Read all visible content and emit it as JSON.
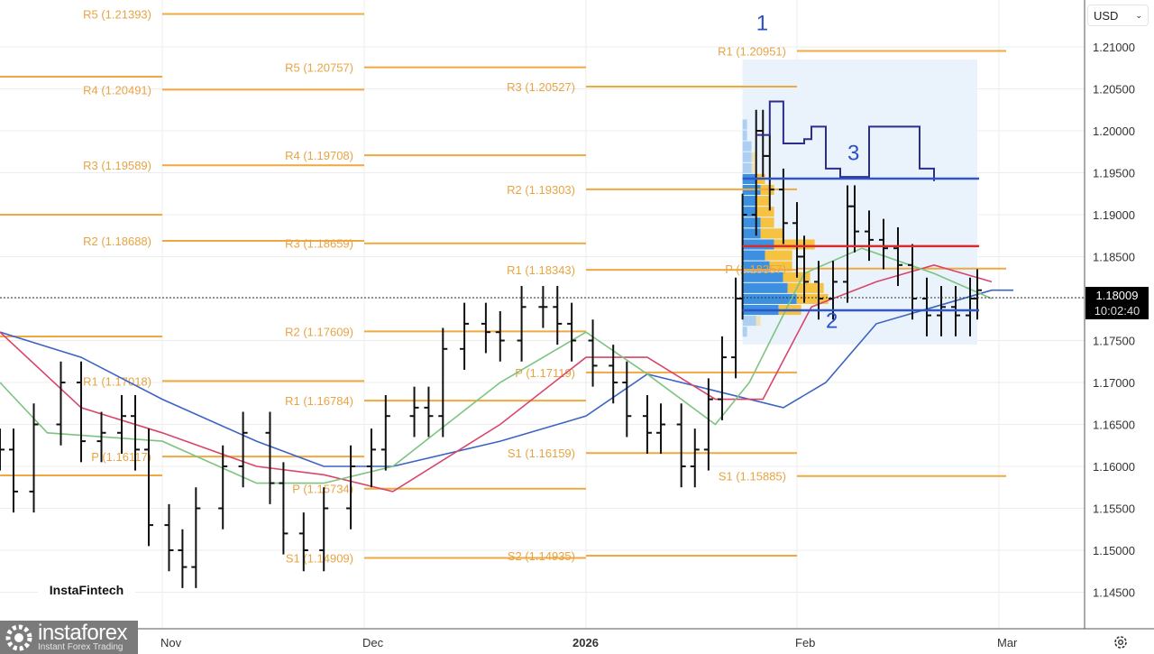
{
  "currency_selector": {
    "label": "USD",
    "icon": "chevron-down-icon"
  },
  "current_price": {
    "price": "1.18009",
    "countdown": "10:02:40"
  },
  "logos": {
    "fintech": "InstaFintech",
    "brand": "instaforex",
    "brand_tagline": "Instant Forex Trading"
  },
  "settings_icon": "gear-icon",
  "chart_data": {
    "type": "ohlc",
    "title": "",
    "colors": {
      "bars": "#111111",
      "pivot": "#f0a940",
      "ma_fast": "#7cc47f",
      "ma_mid": "#d9456a",
      "ma_slow": "#3c63c4",
      "poc": "#d82b2b",
      "value_area": "#2f55c9",
      "profile_blue": "#3d8fe0",
      "profile_yellow": "#f5c242",
      "profile_bg": "#eaf3fc",
      "annotation": "#2a50c8"
    },
    "y_axis": {
      "ticks": [
        "1.21000",
        "1.20500",
        "1.20000",
        "1.19500",
        "1.19000",
        "1.18500",
        "1.18000",
        "1.17500",
        "1.17000",
        "1.16500",
        "1.16000",
        "1.15500",
        "1.15000",
        "1.14500"
      ],
      "ylim": [
        1.1435,
        1.2155
      ],
      "position": "right"
    },
    "x_axis": {
      "ticks": [
        {
          "label": "Nov",
          "date": "2025-11-01"
        },
        {
          "label": "Dec",
          "date": "2025-12-01"
        },
        {
          "label": "2026",
          "date": "2026-01-01",
          "bold": true
        },
        {
          "label": "Feb",
          "date": "2026-02-01"
        },
        {
          "label": "Mar",
          "date": "2026-03-01"
        }
      ]
    },
    "grid": true,
    "last_price": 1.18009,
    "closes": [
      [
        "2025-10-08",
        1.162
      ],
      [
        "2025-10-10",
        1.157
      ],
      [
        "2025-10-13",
        1.165
      ],
      [
        "2025-10-17",
        1.17
      ],
      [
        "2025-10-20",
        1.163
      ],
      [
        "2025-10-23",
        1.164
      ],
      [
        "2025-10-26",
        1.166
      ],
      [
        "2025-10-28",
        1.162
      ],
      [
        "2025-10-30",
        1.153
      ],
      [
        "2025-11-02",
        1.15
      ],
      [
        "2025-11-04",
        1.148
      ],
      [
        "2025-11-06",
        1.155
      ],
      [
        "2025-11-10",
        1.16
      ],
      [
        "2025-11-13",
        1.164
      ],
      [
        "2025-11-17",
        1.158
      ],
      [
        "2025-11-19",
        1.152
      ],
      [
        "2025-11-22",
        1.15
      ],
      [
        "2025-11-25",
        1.155
      ],
      [
        "2025-11-29",
        1.16
      ],
      [
        "2025-12-02",
        1.162
      ],
      [
        "2025-12-04",
        1.166
      ],
      [
        "2025-12-08",
        1.167
      ],
      [
        "2025-12-10",
        1.166
      ],
      [
        "2025-12-12",
        1.174
      ],
      [
        "2025-12-15",
        1.177
      ],
      [
        "2025-12-18",
        1.176
      ],
      [
        "2025-12-20",
        1.175
      ],
      [
        "2025-12-23",
        1.179
      ],
      [
        "2025-12-26",
        1.179
      ],
      [
        "2025-12-28",
        1.177
      ],
      [
        "2025-12-30",
        1.175
      ],
      [
        "2026-01-02",
        1.172
      ],
      [
        "2026-01-05",
        1.17
      ],
      [
        "2026-01-07",
        1.166
      ],
      [
        "2026-01-10",
        1.164
      ],
      [
        "2026-01-12",
        1.165
      ],
      [
        "2026-01-15",
        1.16
      ],
      [
        "2026-01-17",
        1.162
      ],
      [
        "2026-01-19",
        1.168
      ],
      [
        "2026-01-21",
        1.173
      ],
      [
        "2026-01-23",
        1.18
      ],
      [
        "2026-01-24",
        1.19
      ],
      [
        "2026-01-26",
        1.2
      ],
      [
        "2026-01-27",
        1.197
      ],
      [
        "2026-01-28",
        1.193
      ],
      [
        "2026-01-30",
        1.189
      ],
      [
        "2026-02-01",
        1.185
      ],
      [
        "2026-02-02",
        1.182
      ],
      [
        "2026-02-04",
        1.18
      ],
      [
        "2026-02-06",
        1.182
      ],
      [
        "2026-02-08",
        1.191
      ],
      [
        "2026-02-09",
        1.188
      ],
      [
        "2026-02-11",
        1.187
      ],
      [
        "2026-02-13",
        1.186
      ],
      [
        "2026-02-15",
        1.184
      ],
      [
        "2026-02-17",
        1.18
      ],
      [
        "2026-02-19",
        1.178
      ],
      [
        "2026-02-21",
        1.179
      ],
      [
        "2026-02-23",
        1.178
      ],
      [
        "2026-02-25",
        1.18
      ],
      [
        "2026-02-26",
        1.181
      ]
    ],
    "moving_averages": [
      {
        "color_key": "ma_slow",
        "points": [
          [
            "2025-10-08",
            1.176
          ],
          [
            "2025-10-20",
            1.173
          ],
          [
            "2025-11-01",
            1.168
          ],
          [
            "2025-11-15",
            1.163
          ],
          [
            "2025-11-25",
            1.16
          ],
          [
            "2025-12-05",
            1.16
          ],
          [
            "2025-12-20",
            1.163
          ],
          [
            "2026-01-01",
            1.166
          ],
          [
            "2026-01-10",
            1.171
          ],
          [
            "2026-01-20",
            1.169
          ],
          [
            "2026-01-30",
            1.167
          ],
          [
            "2026-02-05",
            1.17
          ],
          [
            "2026-02-12",
            1.177
          ],
          [
            "2026-02-20",
            1.179
          ],
          [
            "2026-02-28",
            1.181
          ],
          [
            "2026-03-03",
            1.181
          ]
        ]
      },
      {
        "color_key": "ma_mid",
        "points": [
          [
            "2025-10-08",
            1.176
          ],
          [
            "2025-10-20",
            1.167
          ],
          [
            "2025-11-01",
            1.164
          ],
          [
            "2025-11-15",
            1.16
          ],
          [
            "2025-11-25",
            1.159
          ],
          [
            "2025-12-05",
            1.157
          ],
          [
            "2025-12-20",
            1.165
          ],
          [
            "2026-01-01",
            1.173
          ],
          [
            "2026-01-10",
            1.173
          ],
          [
            "2026-01-20",
            1.168
          ],
          [
            "2026-01-27",
            1.168
          ],
          [
            "2026-02-03",
            1.179
          ],
          [
            "2026-02-12",
            1.182
          ],
          [
            "2026-02-20",
            1.184
          ],
          [
            "2026-02-28",
            1.182
          ]
        ]
      },
      {
        "color_key": "ma_fast",
        "points": [
          [
            "2025-10-08",
            1.17
          ],
          [
            "2025-10-15",
            1.164
          ],
          [
            "2025-11-01",
            1.163
          ],
          [
            "2025-11-15",
            1.158
          ],
          [
            "2025-11-25",
            1.158
          ],
          [
            "2025-12-05",
            1.16
          ],
          [
            "2025-12-20",
            1.17
          ],
          [
            "2026-01-01",
            1.176
          ],
          [
            "2026-01-10",
            1.171
          ],
          [
            "2026-01-20",
            1.165
          ],
          [
            "2026-01-25",
            1.17
          ],
          [
            "2026-02-02",
            1.183
          ],
          [
            "2026-02-10",
            1.186
          ],
          [
            "2026-02-20",
            1.183
          ],
          [
            "2026-02-28",
            1.18
          ]
        ]
      }
    ],
    "pivot_periods": [
      {
        "start": "2025-10-01",
        "end": "2025-11-01",
        "levels": [
          {
            "label": "",
            "value": 1.20645
          },
          {
            "label": "",
            "value": 1.19
          },
          {
            "label": "",
            "value": 1.17548
          },
          {
            "label": "",
            "value": 1.15892
          }
        ]
      },
      {
        "start": "2025-11-01",
        "end": "2025-12-01",
        "levels": [
          {
            "label": "R5 (1.21393)",
            "value": 1.21393
          },
          {
            "label": "R4 (1.20491)",
            "value": 1.20491
          },
          {
            "label": "R3 (1.19589)",
            "value": 1.19589
          },
          {
            "label": "R2 (1.18688)",
            "value": 1.18688
          },
          {
            "label": "R1 (1.17018)",
            "value": 1.17018
          },
          {
            "label": "P (1.16117)",
            "value": 1.16117
          }
        ]
      },
      {
        "start": "2025-12-01",
        "end": "2026-01-01",
        "levels": [
          {
            "label": "R5 (1.20757)",
            "value": 1.20757
          },
          {
            "label": "R4 (1.19708)",
            "value": 1.19708
          },
          {
            "label": "R3 (1.18659)",
            "value": 1.18659
          },
          {
            "label": "R2 (1.17609)",
            "value": 1.17609
          },
          {
            "label": "R1 (1.16784)",
            "value": 1.16784
          },
          {
            "label": "P (1.15734)",
            "value": 1.15734
          },
          {
            "label": "S1 (1.14909)",
            "value": 1.14909
          }
        ]
      },
      {
        "start": "2026-01-01",
        "end": "2026-02-01",
        "levels": [
          {
            "label": "R3 (1.20527)",
            "value": 1.20527
          },
          {
            "label": "R2 (1.19303)",
            "value": 1.19303
          },
          {
            "label": "R1 (1.18343)",
            "value": 1.18343
          },
          {
            "label": "P (1.17119)",
            "value": 1.17119
          },
          {
            "label": "S1 (1.16159)",
            "value": 1.16159
          },
          {
            "label": "S2 (1.14935)",
            "value": 1.14935
          }
        ]
      },
      {
        "start": "2026-02-01",
        "end": "2026-03-02",
        "levels": [
          {
            "label": "R1 (1.20951)",
            "value": 1.20951
          },
          {
            "label": "P (1.18357)",
            "value": 1.18357
          },
          {
            "label": "S1 (1.15885)",
            "value": 1.15885
          }
        ]
      }
    ],
    "volume_profile": {
      "start": "2026-01-24",
      "end": "2026-02-26",
      "price_range": [
        1.1745,
        1.2085
      ],
      "poc": 1.18625,
      "value_area_high": 1.1943,
      "value_area_low": 1.1786,
      "rows": [
        {
          "price": 1.176,
          "blue": 1,
          "yellow": 0
        },
        {
          "price": 1.1773,
          "blue": 3,
          "yellow": 1
        },
        {
          "price": 1.1786,
          "blue": 8,
          "yellow": 5
        },
        {
          "price": 1.1799,
          "blue": 12,
          "yellow": 7
        },
        {
          "price": 1.1812,
          "blue": 10,
          "yellow": 8
        },
        {
          "price": 1.1825,
          "blue": 9,
          "yellow": 6
        },
        {
          "price": 1.1838,
          "blue": 6,
          "yellow": 5
        },
        {
          "price": 1.1851,
          "blue": 5,
          "yellow": 6
        },
        {
          "price": 1.1864,
          "blue": 7,
          "yellow": 9
        },
        {
          "price": 1.1877,
          "blue": 4,
          "yellow": 5
        },
        {
          "price": 1.189,
          "blue": 4,
          "yellow": 3
        },
        {
          "price": 1.1903,
          "blue": 3,
          "yellow": 4
        },
        {
          "price": 1.1916,
          "blue": 3,
          "yellow": 3
        },
        {
          "price": 1.1929,
          "blue": 4,
          "yellow": 3
        },
        {
          "price": 1.1942,
          "blue": 3,
          "yellow": 2
        },
        {
          "price": 1.1955,
          "blue": 2,
          "yellow": 1
        },
        {
          "price": 1.1968,
          "blue": 2,
          "yellow": 1
        },
        {
          "price": 1.1981,
          "blue": 2,
          "yellow": 0
        },
        {
          "price": 1.1994,
          "blue": 1,
          "yellow": 0
        },
        {
          "price": 1.2007,
          "blue": 1,
          "yellow": 0
        }
      ],
      "developing_poc": [
        [
          "2026-01-26",
          1.1995
        ],
        [
          "2026-01-28",
          1.2035
        ],
        [
          "2026-01-30",
          1.1985
        ],
        [
          "2026-02-02",
          1.199
        ],
        [
          "2026-02-03",
          1.2005
        ],
        [
          "2026-02-05",
          1.1955
        ],
        [
          "2026-02-07",
          1.1945
        ],
        [
          "2026-02-09",
          1.1945
        ],
        [
          "2026-02-11",
          1.2005
        ],
        [
          "2026-02-16",
          1.2005
        ],
        [
          "2026-02-18",
          1.1955
        ],
        [
          "2026-02-20",
          1.194
        ]
      ]
    },
    "annotations": [
      {
        "text": "1",
        "date": "2026-01-26",
        "price": 1.212
      },
      {
        "text": "2",
        "date": "2026-02-05",
        "price": 1.1765
      },
      {
        "text": "3",
        "date": "2026-02-08",
        "price": 1.1965
      }
    ]
  }
}
